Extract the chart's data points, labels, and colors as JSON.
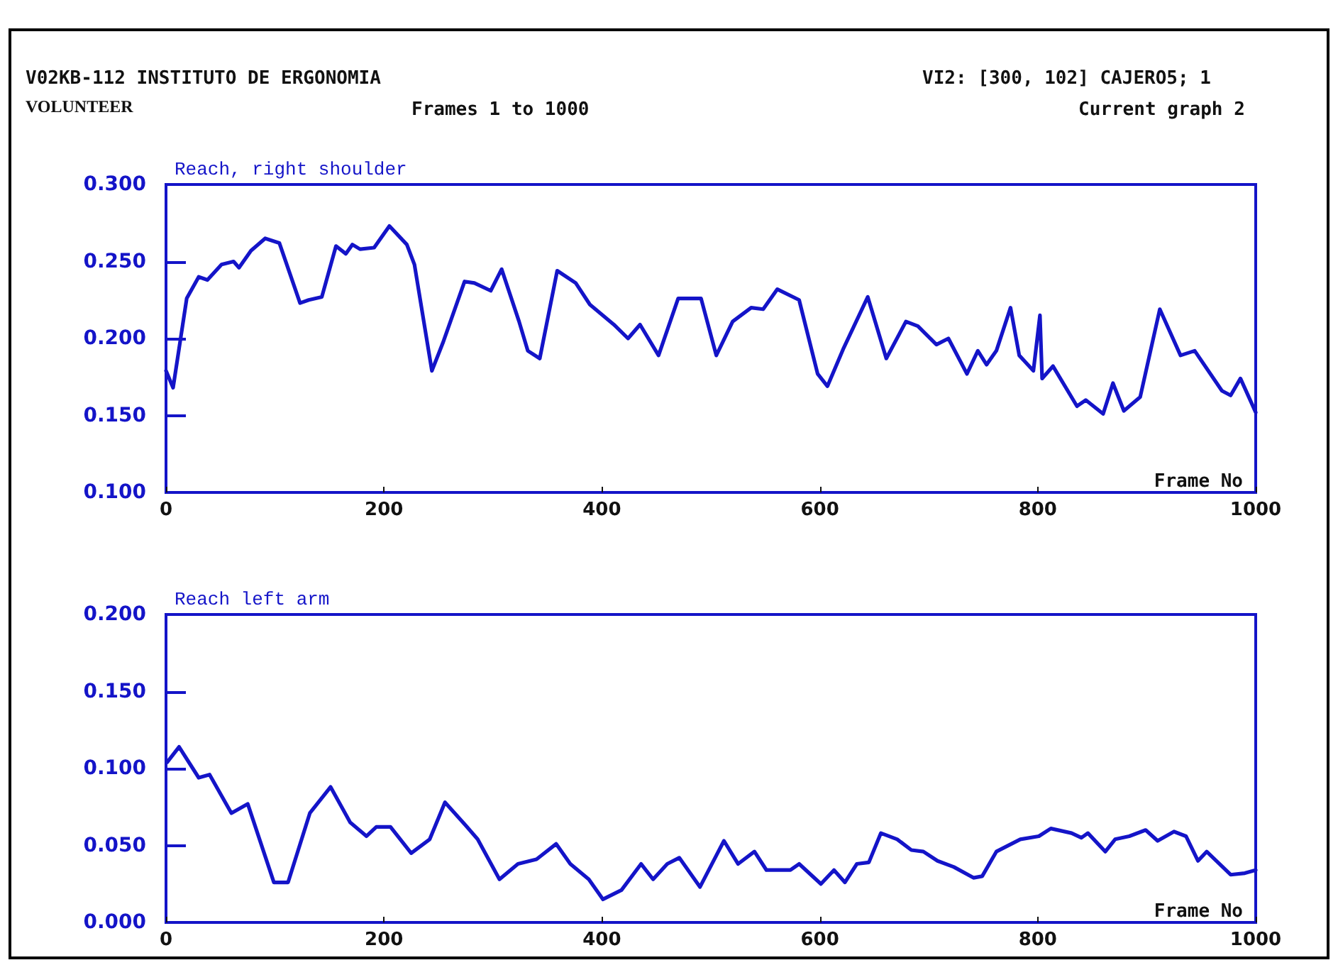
{
  "chart_data": [
    {
      "type": "line",
      "title": "Reach, right shoulder",
      "xlabel": "Frame No",
      "annotations": [
        "V02KB-112  INSTITUTO DE ERGONOMIA",
        "VOLUNTEER",
        "Frames 1 to 1000",
        "VI2: [300, 102] CAJERO5; 1",
        "Current graph 2"
      ],
      "series": [
        {
          "color": "#1414c8",
          "x": [
            0,
            6.5,
            19,
            30,
            38,
            51,
            62,
            67,
            78,
            91,
            104,
            123,
            131,
            143,
            156,
            165,
            171,
            178,
            191,
            205,
            221,
            228,
            244,
            254,
            274,
            283,
            298,
            308,
            324,
            332,
            343,
            359,
            376,
            389,
            411,
            424,
            435,
            452,
            470,
            491,
            505,
            520,
            537,
            548,
            561,
            581,
            598,
            607,
            622,
            644,
            661,
            679,
            690,
            707,
            718,
            735,
            745,
            753,
            762,
            775,
            783,
            796,
            802,
            804,
            814,
            836,
            844,
            860,
            869,
            879,
            894,
            912,
            931,
            944,
            969,
            977,
            986,
            1000
          ],
          "values": [
            0.179,
            0.168,
            0.226,
            0.24,
            0.238,
            0.248,
            0.25,
            0.246,
            0.257,
            0.265,
            0.262,
            0.223,
            0.225,
            0.227,
            0.26,
            0.255,
            0.261,
            0.258,
            0.259,
            0.273,
            0.261,
            0.248,
            0.179,
            0.197,
            0.237,
            0.236,
            0.231,
            0.245,
            0.211,
            0.192,
            0.187,
            0.244,
            0.236,
            0.222,
            0.209,
            0.2,
            0.209,
            0.189,
            0.226,
            0.226,
            0.189,
            0.211,
            0.22,
            0.219,
            0.232,
            0.225,
            0.177,
            0.169,
            0.194,
            0.227,
            0.187,
            0.211,
            0.208,
            0.196,
            0.2,
            0.177,
            0.192,
            0.183,
            0.192,
            0.22,
            0.189,
            0.179,
            0.215,
            0.174,
            0.182,
            0.156,
            0.16,
            0.151,
            0.171,
            0.153,
            0.162,
            0.219,
            0.189,
            0.192,
            0.166,
            0.163,
            0.174,
            0.152
          ]
        }
      ],
      "xlim": [
        0,
        1000
      ],
      "xticks": [
        0,
        200,
        400,
        600,
        800,
        1000
      ],
      "ylim": [
        0.1,
        0.3
      ],
      "yticks": [
        {
          "value": 0.1,
          "label": "0.100"
        },
        {
          "value": 0.15,
          "label": "0.150"
        },
        {
          "value": 0.2,
          "label": "0.200"
        },
        {
          "value": 0.25,
          "label": "0.250"
        },
        {
          "value": 0.3,
          "label": "0.300"
        }
      ],
      "marker": "none",
      "line_style": "solid",
      "grid": false
    },
    {
      "type": "line",
      "title": "Reach left arm",
      "xlabel": "Frame No",
      "series": [
        {
          "color": "#1414c8",
          "x": [
            1,
            12,
            30,
            40,
            60,
            75,
            99,
            112,
            132,
            151,
            169,
            184,
            193,
            206,
            225,
            242,
            256,
            275,
            286,
            306,
            323,
            340,
            358,
            371,
            388,
            401,
            418,
            436,
            447,
            460,
            471,
            490,
            512,
            525,
            540,
            551,
            573,
            581,
            601,
            613,
            623,
            634,
            645,
            656,
            671,
            684,
            695,
            708,
            723,
            741,
            749,
            762,
            784,
            801,
            812,
            831,
            840,
            846,
            862,
            871,
            884,
            899,
            910,
            925,
            936,
            947,
            955,
            977,
            990,
            1000
          ],
          "values": [
            0.104,
            0.114,
            0.094,
            0.096,
            0.071,
            0.077,
            0.026,
            0.026,
            0.071,
            0.088,
            0.065,
            0.056,
            0.062,
            0.062,
            0.045,
            0.054,
            0.078,
            0.063,
            0.054,
            0.028,
            0.038,
            0.041,
            0.051,
            0.038,
            0.028,
            0.015,
            0.021,
            0.038,
            0.028,
            0.038,
            0.042,
            0.023,
            0.053,
            0.038,
            0.046,
            0.034,
            0.034,
            0.038,
            0.025,
            0.034,
            0.026,
            0.038,
            0.039,
            0.058,
            0.054,
            0.047,
            0.046,
            0.04,
            0.036,
            0.029,
            0.03,
            0.046,
            0.054,
            0.056,
            0.061,
            0.058,
            0.055,
            0.058,
            0.046,
            0.054,
            0.056,
            0.06,
            0.053,
            0.059,
            0.056,
            0.04,
            0.046,
            0.031,
            0.032,
            0.034
          ]
        }
      ],
      "xlim": [
        0,
        1000
      ],
      "xticks": [
        0,
        200,
        400,
        600,
        800,
        1000
      ],
      "ylim": [
        0,
        0.2
      ],
      "yticks": [
        {
          "value": 0,
          "label": "0.000"
        },
        {
          "value": 0.05,
          "label": "0.050"
        },
        {
          "value": 0.1,
          "label": "0.100"
        },
        {
          "value": 0.15,
          "label": "0.150"
        },
        {
          "value": 0.2,
          "label": "0.200"
        }
      ],
      "marker": "none",
      "line_style": "solid",
      "grid": false
    }
  ]
}
